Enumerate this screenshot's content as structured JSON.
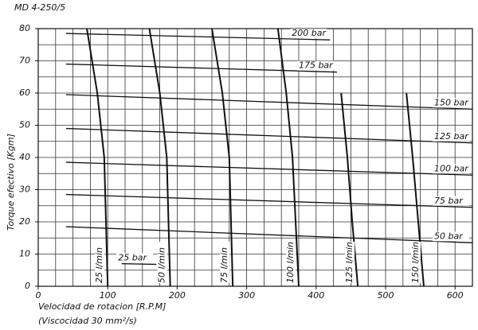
{
  "chart_data": {
    "type": "line",
    "title": "MD 4-250/5",
    "x_label": "Velocidad  de  rotacion   [R.P.M]",
    "x_sublabel": "(Viscocidad  30 mm²/s)",
    "y_label": "Torque  efectivo   [Kgm]",
    "xlim": [
      0,
      625
    ],
    "ylim": [
      0,
      80
    ],
    "xticks": [
      0,
      100,
      200,
      300,
      400,
      500,
      600
    ],
    "yticks": [
      0,
      10,
      20,
      30,
      40,
      50,
      60,
      70,
      80
    ],
    "grid": true,
    "xgrid_step": 25,
    "ygrid_step": 5,
    "color": "#111",
    "series": [
      {
        "name": "200 bar",
        "kind": "pressure",
        "x": [
          40,
          420
        ],
        "values": [
          78.5,
          76.5
        ]
      },
      {
        "name": "175 bar",
        "kind": "pressure",
        "x": [
          40,
          430
        ],
        "values": [
          69,
          66.5
        ]
      },
      {
        "name": "150 bar",
        "kind": "pressure",
        "x": [
          40,
          625
        ],
        "values": [
          59.5,
          55
        ]
      },
      {
        "name": "125 bar",
        "kind": "pressure",
        "x": [
          40,
          625
        ],
        "values": [
          49,
          44.5
        ]
      },
      {
        "name": "100 bar",
        "kind": "pressure",
        "x": [
          40,
          625
        ],
        "values": [
          38.5,
          34.5
        ]
      },
      {
        "name": "75 bar",
        "kind": "pressure",
        "x": [
          40,
          625
        ],
        "values": [
          28.5,
          24.5
        ]
      },
      {
        "name": "50 bar",
        "kind": "pressure",
        "x": [
          40,
          625
        ],
        "values": [
          18.5,
          13.5
        ]
      },
      {
        "name": "25 bar",
        "kind": "pressure",
        "x": [
          120,
          170
        ],
        "values": [
          7,
          6.8
        ]
      },
      {
        "name": "25 l/min",
        "kind": "flow",
        "x": [
          70,
          85,
          95,
          100
        ],
        "values": [
          80,
          60,
          40,
          0
        ]
      },
      {
        "name": "50 l/min",
        "kind": "flow",
        "x": [
          160,
          175,
          185,
          190
        ],
        "values": [
          80,
          60,
          40,
          0
        ]
      },
      {
        "name": "75 l/min",
        "kind": "flow",
        "x": [
          250,
          265,
          275,
          280
        ],
        "values": [
          80,
          60,
          40,
          0
        ]
      },
      {
        "name": "100 l/min",
        "kind": "flow",
        "x": [
          345,
          357,
          366,
          375
        ],
        "values": [
          80,
          60,
          40,
          0
        ]
      },
      {
        "name": "125 l/min",
        "kind": "flow",
        "x": [
          436,
          445,
          452,
          460
        ],
        "values": [
          60,
          40,
          20,
          0
        ]
      },
      {
        "name": "150 l/min",
        "kind": "flow",
        "x": [
          530,
          539,
          547,
          555
        ],
        "values": [
          60,
          40,
          20,
          0
        ]
      }
    ]
  }
}
